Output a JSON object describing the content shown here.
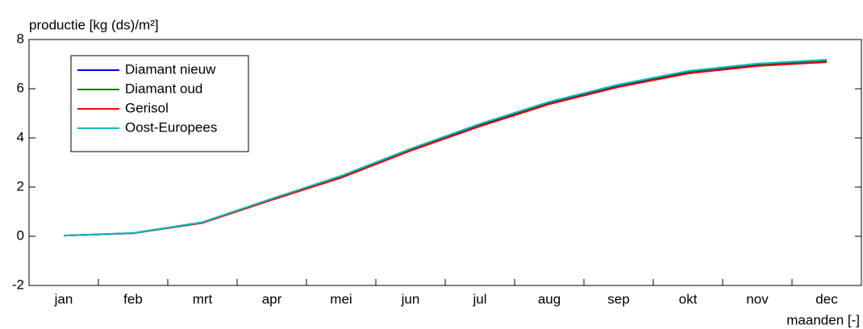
{
  "chart_data": {
    "type": "line",
    "ylabel": "productie [kg (ds)/m²]",
    "xlabel": "maanden [-]",
    "categories": [
      "jan",
      "feb",
      "mrt",
      "apr",
      "mei",
      "jun",
      "jul",
      "aug",
      "sep",
      "okt",
      "nov",
      "dec"
    ],
    "ylim": [
      -2,
      8
    ],
    "yticks": [
      -2,
      0,
      2,
      4,
      6,
      8
    ],
    "grid": false,
    "legend": "upper left",
    "series": [
      {
        "name": "Diamant nieuw",
        "color": "#0000ff",
        "values": [
          0.03,
          0.12,
          0.55,
          1.5,
          2.4,
          3.5,
          4.5,
          5.4,
          6.1,
          6.65,
          6.95,
          7.1
        ]
      },
      {
        "name": "Diamant oud",
        "color": "#008000",
        "values": [
          0.03,
          0.13,
          0.57,
          1.52,
          2.45,
          3.55,
          4.55,
          5.45,
          6.15,
          6.7,
          7.0,
          7.15
        ]
      },
      {
        "name": "Gerisol",
        "color": "#ff0000",
        "values": [
          0.03,
          0.12,
          0.54,
          1.48,
          2.38,
          3.48,
          4.47,
          5.37,
          6.07,
          6.62,
          6.92,
          7.08
        ]
      },
      {
        "name": "Oost-Europees",
        "color": "#00bfbf",
        "values": [
          0.03,
          0.13,
          0.57,
          1.53,
          2.46,
          3.56,
          4.57,
          5.47,
          6.17,
          6.72,
          7.02,
          7.18
        ]
      }
    ]
  }
}
